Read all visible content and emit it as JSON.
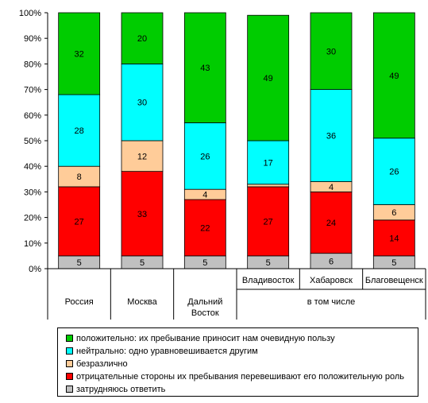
{
  "chart_data": {
    "type": "bar",
    "stacked": true,
    "categories": [
      "Россия",
      "Москва",
      "Дальний Восток",
      "Владивосток",
      "Хабаровск",
      "Благовещенск"
    ],
    "group_label": "в том числе",
    "yticks": [
      "0%",
      "10%",
      "20%",
      "30%",
      "40%",
      "50%",
      "60%",
      "70%",
      "80%",
      "90%",
      "100%"
    ],
    "ylim": [
      0,
      100
    ],
    "grid": false,
    "legend_position": "bottom",
    "series": [
      {
        "name": "затрудняюсь ответить",
        "color": "#c0c0c0",
        "values": [
          5,
          5,
          5,
          5,
          6,
          5
        ]
      },
      {
        "name": "отрицательные стороны их пребывания перевешивают его  положительную роль",
        "color": "#ff0000",
        "values": [
          27,
          33,
          22,
          27,
          24,
          14
        ]
      },
      {
        "name": "безразлично",
        "color": "#ffcc99",
        "values": [
          8,
          12,
          4,
          1,
          4,
          6
        ]
      },
      {
        "name": "нейтрально: одно уравновешивается другим",
        "color": "#00ffff",
        "values": [
          28,
          30,
          26,
          17,
          36,
          26
        ]
      },
      {
        "name": "положительно: их пребывание приносит нам очевидную пользу",
        "color": "#00cc00",
        "values": [
          32,
          20,
          43,
          49,
          30,
          49
        ]
      }
    ],
    "value_labels": [
      [
        "5",
        "27",
        "8",
        "28",
        "32"
      ],
      [
        "5",
        "33",
        "12",
        "30",
        "20"
      ],
      [
        "5",
        "22",
        "4",
        "26",
        "43"
      ],
      [
        "5",
        "27",
        "",
        "17",
        "49"
      ],
      [
        "6",
        "24",
        "4",
        "36",
        "30"
      ],
      [
        "5",
        "14",
        "6",
        "26",
        "49"
      ]
    ]
  },
  "legend": {
    "items": [
      {
        "label": "положительно: их пребывание приносит нам очевидную пользу",
        "color": "#00cc00"
      },
      {
        "label": "нейтрально: одно уравновешивается другим",
        "color": "#00ffff"
      },
      {
        "label": "безразлично",
        "color": "#ffcc99"
      },
      {
        "label": "отрицательные стороны их пребывания перевешивают его  положительную роль",
        "color": "#ff0000"
      },
      {
        "label": "затрудняюсь ответить",
        "color": "#c0c0c0"
      }
    ]
  }
}
